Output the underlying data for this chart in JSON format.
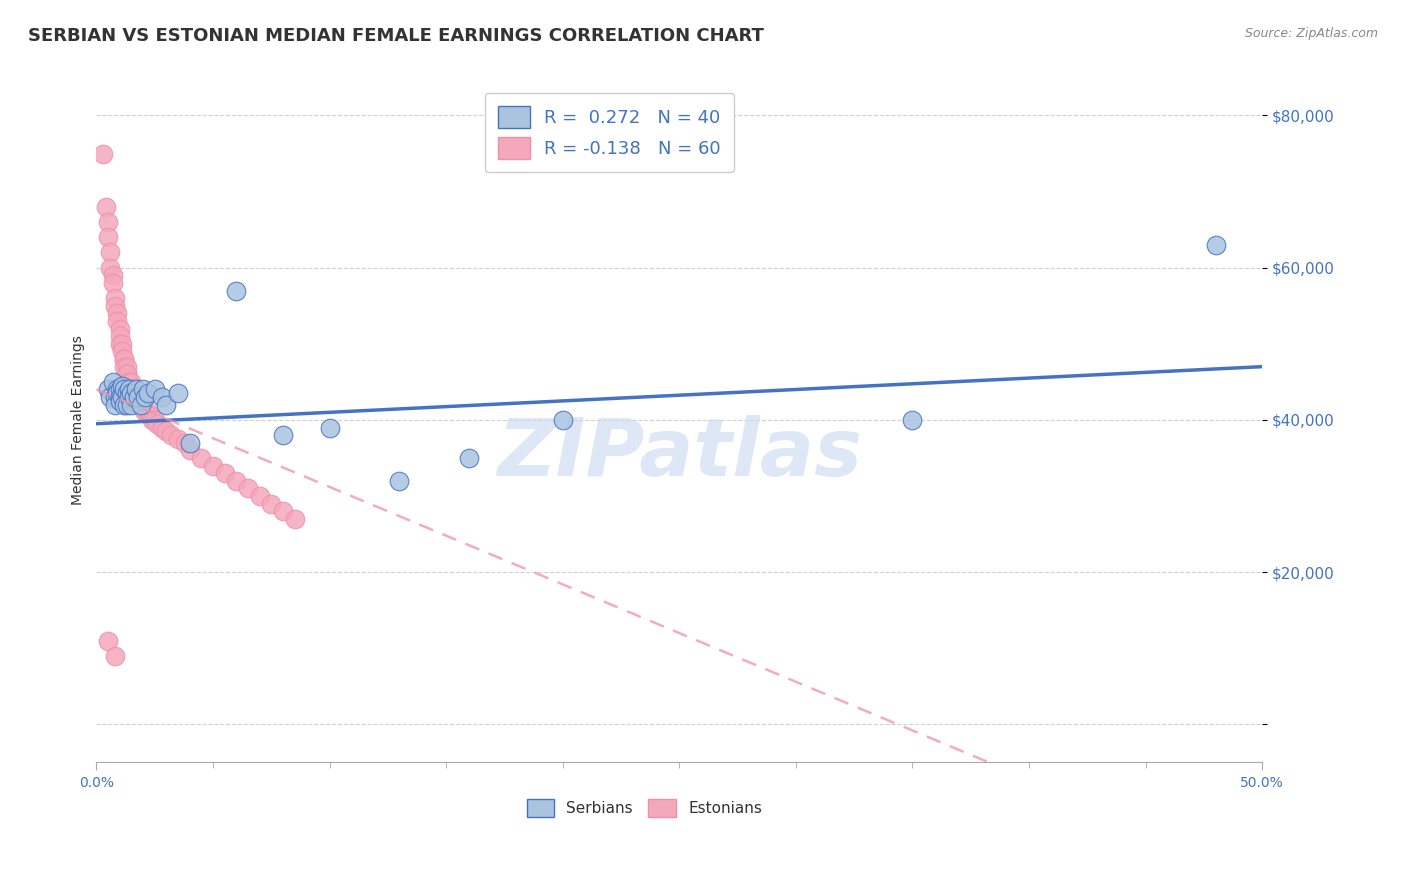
{
  "title": "SERBIAN VS ESTONIAN MEDIAN FEMALE EARNINGS CORRELATION CHART",
  "source": "Source: ZipAtlas.com",
  "ylabel": "Median Female Earnings",
  "xmin": 0.0,
  "xmax": 0.5,
  "ymin": -5000,
  "ymax": 85000,
  "R_serbian": 0.272,
  "N_serbian": 40,
  "R_estonian": -0.138,
  "N_estonian": 60,
  "color_serbian": "#aac4e0",
  "color_estonian": "#f4a8bc",
  "color_trend_serbian": "#4472c4",
  "color_trend_estonian": "#f090a8",
  "watermark": "ZIPatlas",
  "watermark_color": "#c8d8f0",
  "legend_text_color": "#4472c4",
  "title_fontsize": 13,
  "yticks": [
    0,
    20000,
    40000,
    60000,
    80000
  ],
  "ytick_labels": [
    "",
    "$20,000",
    "$40,000",
    "$60,000",
    "$80,000"
  ],
  "serbian_x": [
    0.005,
    0.006,
    0.007,
    0.008,
    0.008,
    0.009,
    0.009,
    0.01,
    0.01,
    0.01,
    0.011,
    0.011,
    0.012,
    0.012,
    0.013,
    0.013,
    0.014,
    0.014,
    0.015,
    0.015,
    0.016,
    0.017,
    0.018,
    0.019,
    0.02,
    0.021,
    0.022,
    0.025,
    0.028,
    0.03,
    0.035,
    0.04,
    0.06,
    0.08,
    0.1,
    0.13,
    0.16,
    0.2,
    0.35,
    0.48
  ],
  "serbian_y": [
    44000,
    43000,
    45000,
    43000,
    42000,
    44000,
    43500,
    44000,
    43000,
    42500,
    44500,
    43000,
    42000,
    44000,
    43500,
    42000,
    44000,
    43000,
    43500,
    42000,
    43000,
    44000,
    43000,
    42000,
    44000,
    43000,
    43500,
    44000,
    43000,
    42000,
    43500,
    37000,
    57000,
    38000,
    39000,
    32000,
    35000,
    40000,
    40000,
    63000
  ],
  "estonian_x": [
    0.003,
    0.004,
    0.005,
    0.005,
    0.006,
    0.006,
    0.007,
    0.007,
    0.008,
    0.008,
    0.009,
    0.009,
    0.01,
    0.01,
    0.01,
    0.011,
    0.011,
    0.012,
    0.012,
    0.012,
    0.013,
    0.013,
    0.013,
    0.014,
    0.014,
    0.015,
    0.015,
    0.015,
    0.016,
    0.016,
    0.017,
    0.017,
    0.018,
    0.018,
    0.019,
    0.02,
    0.02,
    0.021,
    0.022,
    0.023,
    0.024,
    0.025,
    0.026,
    0.028,
    0.03,
    0.032,
    0.035,
    0.038,
    0.04,
    0.045,
    0.05,
    0.055,
    0.06,
    0.065,
    0.07,
    0.075,
    0.08,
    0.085,
    0.005,
    0.008
  ],
  "estonian_y": [
    75000,
    68000,
    66000,
    64000,
    62000,
    60000,
    59000,
    58000,
    56000,
    55000,
    54000,
    53000,
    52000,
    51000,
    50000,
    50000,
    49000,
    48000,
    48000,
    47000,
    47000,
    46000,
    46000,
    45000,
    45000,
    45000,
    44000,
    44000,
    44000,
    43500,
    43000,
    43000,
    43000,
    42000,
    42000,
    42000,
    41500,
    41000,
    41000,
    40500,
    40000,
    40000,
    39500,
    39000,
    38500,
    38000,
    37500,
    37000,
    36000,
    35000,
    34000,
    33000,
    32000,
    31000,
    30000,
    29000,
    28000,
    27000,
    11000,
    9000
  ]
}
